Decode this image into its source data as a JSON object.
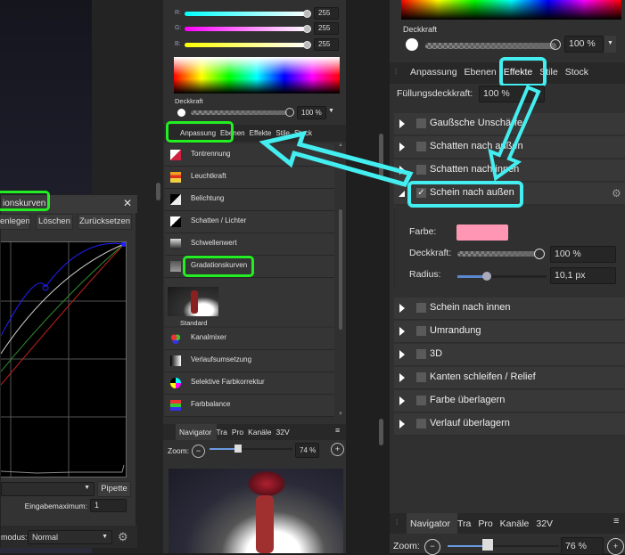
{
  "curves_dialog": {
    "title": "ionskurven",
    "buttons": [
      "enlegen",
      "Löschen",
      "Zurücksetzen"
    ],
    "pipette": "Pipette",
    "input_max_label": "Eingabemaximum:",
    "input_max_value": "1",
    "blend_label": "modus:",
    "blend_value": "Normal",
    "curve_colors": {
      "blue": "#2020ff",
      "white": "#d0d0d0",
      "green": "#2f8a2f",
      "red": "#c02020"
    }
  },
  "middle": {
    "rgb": [
      {
        "label": "R:",
        "value": "255",
        "color": "#00ffff"
      },
      {
        "label": "G:",
        "value": "255",
        "color": "#ff00ff"
      },
      {
        "label": "B:",
        "value": "255",
        "color": "#ffff00"
      }
    ],
    "opacity_label": "Deckkraft",
    "opacity_value": "100 %",
    "tabs": [
      "Anpassung",
      "Ebenen",
      "Effekte",
      "Stile",
      "Stock"
    ],
    "adjustments": [
      "Tontrennung",
      "Leuchtkraft",
      "Belichtung",
      "Schatten / Lichter",
      "Schwellenwert",
      "Gradationskurven"
    ],
    "preset_label": "Standard",
    "adjustments2": [
      "Kanalmixer",
      "Verlaufsumsetzung",
      "Selektive Farbkorrektur",
      "Farbbalance"
    ],
    "navigator": {
      "tabs": [
        "Navigator",
        "Tra",
        "Pro",
        "Kanäle",
        "32V"
      ],
      "zoom_label": "Zoom:",
      "zoom_value": "74 %"
    }
  },
  "right": {
    "opacity_label": "Deckkraft",
    "opacity_value": "100 %",
    "tabs": [
      "Anpassung",
      "Ebenen",
      "Effekte",
      "Stile",
      "Stock"
    ],
    "active_tab": "Effekte",
    "fill_opacity_label": "Füllungsdeckkraft:",
    "fill_opacity_value": "100 %",
    "effects": [
      {
        "label": "Gaußsche Unschärfe",
        "checked": false
      },
      {
        "label": "Schatten nach außen",
        "checked": false
      },
      {
        "label": "Schatten nach innen",
        "checked": false
      },
      {
        "label": "Schein nach außen",
        "checked": true,
        "expanded": true
      },
      {
        "label": "Schein nach innen",
        "checked": false
      },
      {
        "label": "Umrandung",
        "checked": false
      },
      {
        "label": "3D",
        "checked": false
      },
      {
        "label": "Kanten schleifen / Relief",
        "checked": false
      },
      {
        "label": "Farbe überlagern",
        "checked": false
      },
      {
        "label": "Verlauf überlagern",
        "checked": false
      }
    ],
    "glow": {
      "color_label": "Farbe:",
      "color": "#ff96b4",
      "opacity_label": "Deckkraft:",
      "opacity_value": "100 %",
      "radius_label": "Radius:",
      "radius_value": "10,1 px",
      "radius_fraction": 0.33
    },
    "navigator": {
      "tabs": [
        "Navigator",
        "Tra",
        "Pro",
        "Kanäle",
        "32V"
      ],
      "zoom_label": "Zoom:",
      "zoom_value": "76 %"
    }
  },
  "highlight_colors": {
    "green": "#22ee22",
    "cyan": "#44eef0"
  }
}
